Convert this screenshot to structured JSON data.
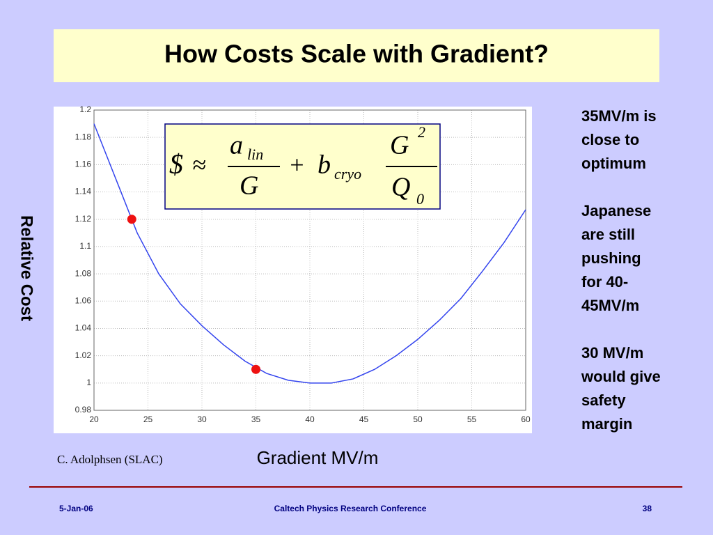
{
  "title": "How Costs Scale with Gradient?",
  "chart_data": {
    "type": "line",
    "xlabel": "Gradient MV/m",
    "ylabel": "Relative Cost",
    "xlim": [
      20,
      60
    ],
    "xticks": [
      20,
      25,
      30,
      35,
      40,
      45,
      50,
      55,
      60
    ],
    "ylim": [
      0.98,
      1.2
    ],
    "yticks": [
      0.98,
      1,
      1.02,
      1.04,
      1.06,
      1.08,
      1.1,
      1.12,
      1.14,
      1.16,
      1.18,
      1.2
    ],
    "grid": true,
    "series": [
      {
        "type": "line",
        "color": "#3344ee",
        "x": [
          20,
          22,
          24,
          26,
          28,
          30,
          32,
          34,
          36,
          38,
          40,
          42,
          44,
          46,
          48,
          50,
          52,
          54,
          56,
          58,
          60
        ],
        "values": [
          1.19,
          1.15,
          1.11,
          1.08,
          1.058,
          1.042,
          1.028,
          1.016,
          1.007,
          1.002,
          1.0,
          1.0,
          1.003,
          1.01,
          1.02,
          1.032,
          1.046,
          1.062,
          1.082,
          1.103,
          1.127
        ]
      },
      {
        "type": "scatter",
        "color": "#ee1111",
        "x": [
          23.5,
          35
        ],
        "values": [
          1.12,
          1.01
        ]
      }
    ]
  },
  "formula": {
    "lhs": "$",
    "approx": "≈",
    "a": "a",
    "a_sub": "lin",
    "den1": "G",
    "plus": "+",
    "b": "b",
    "b_sub": "cryo",
    "num2": "G",
    "num2_sup": "2",
    "den2": "Q",
    "den2_sub": "0"
  },
  "credit": "C. Adolphsen (SLAC)",
  "notes": [
    [
      "35MV/m is",
      "close to",
      "optimum"
    ],
    [
      "Japanese",
      "are still",
      "pushing",
      "for 40-",
      "45MV/m"
    ],
    [
      "30 MV/m",
      "would give",
      "safety",
      "margin"
    ]
  ],
  "footer": {
    "date": "5-Jan-06",
    "event": "Caltech Physics Research Conference",
    "page": "38"
  }
}
